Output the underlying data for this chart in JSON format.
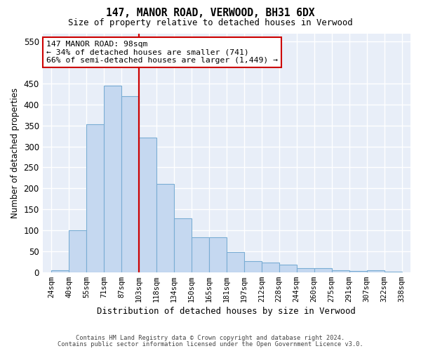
{
  "title": "147, MANOR ROAD, VERWOOD, BH31 6DX",
  "subtitle": "Size of property relative to detached houses in Verwood",
  "xlabel": "Distribution of detached houses by size in Verwood",
  "ylabel": "Number of detached properties",
  "categories": [
    "24sqm",
    "40sqm",
    "55sqm",
    "71sqm",
    "87sqm",
    "103sqm",
    "118sqm",
    "134sqm",
    "150sqm",
    "165sqm",
    "181sqm",
    "197sqm",
    "212sqm",
    "228sqm",
    "244sqm",
    "260sqm",
    "275sqm",
    "291sqm",
    "307sqm",
    "322sqm",
    "338sqm"
  ],
  "values": [
    5,
    100,
    353,
    445,
    420,
    322,
    210,
    128,
    83,
    83,
    48,
    27,
    23,
    18,
    10,
    10,
    5,
    3,
    5,
    2
  ],
  "bar_color": "#c5d8f0",
  "bar_edge_color": "#7aadd4",
  "vline_color": "#cc0000",
  "vline_x": 5,
  "annotation_text": "147 MANOR ROAD: 98sqm\n← 34% of detached houses are smaller (741)\n66% of semi-detached houses are larger (1,449) →",
  "ann_facecolor": "#ffffff",
  "ann_edgecolor": "#cc0000",
  "bg_color": "#e8eef8",
  "grid_color": "#ffffff",
  "yticks": [
    0,
    50,
    100,
    150,
    200,
    250,
    300,
    350,
    400,
    450,
    550
  ],
  "ylim": [
    0,
    570
  ],
  "footer1": "Contains HM Land Registry data © Crown copyright and database right 2024.",
  "footer2": "Contains public sector information licensed under the Open Government Licence v3.0."
}
